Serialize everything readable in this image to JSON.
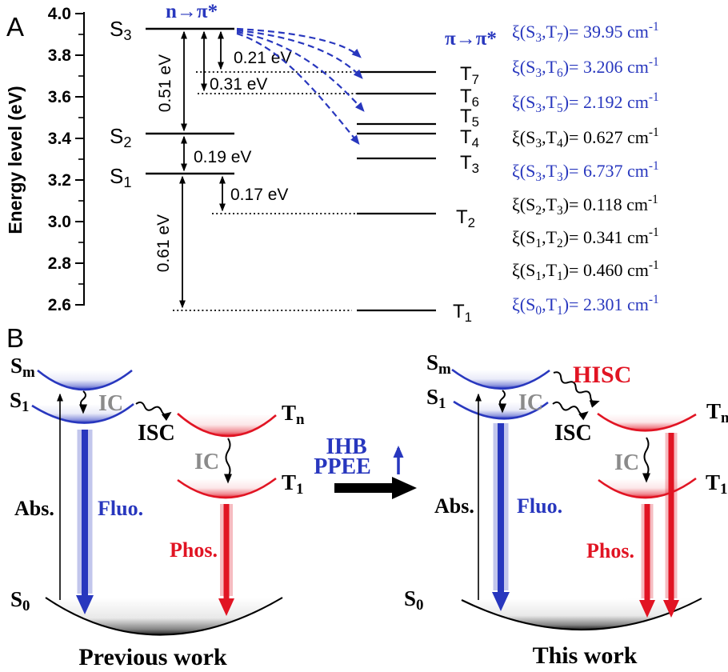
{
  "figure_type": "photophysics energy-level diagram",
  "colors": {
    "blue": "#2837be",
    "red": "#e11423",
    "gray": "#8a8a8a",
    "ink": "#000000"
  },
  "panel_a": {
    "label": "A",
    "axis": {
      "title": "Energy level (eV)",
      "unit": "eV",
      "min": 2.6,
      "max": 4.0,
      "ticks": [
        "4.0",
        "3.8",
        "3.6",
        "3.4",
        "3.2",
        "3.0",
        "2.8",
        "2.6"
      ]
    },
    "annotations": {
      "n_pi": "n→π*",
      "pi_pi": "π→π*"
    },
    "singlets": [
      {
        "name": "S3",
        "segs": [
          {
            "t": "S"
          },
          {
            "t": "3",
            "s": "sub"
          }
        ],
        "energy_eV": 3.93
      },
      {
        "name": "S2",
        "segs": [
          {
            "t": "S"
          },
          {
            "t": "2",
            "s": "sub"
          }
        ],
        "energy_eV": 3.43
      },
      {
        "name": "S1",
        "segs": [
          {
            "t": "S"
          },
          {
            "t": "1",
            "s": "sub"
          }
        ],
        "energy_eV": 3.24
      }
    ],
    "triplets": [
      {
        "name": "T7",
        "segs": [
          {
            "t": "T"
          },
          {
            "t": "7",
            "s": "sub"
          }
        ],
        "energy_eV": 3.72
      },
      {
        "name": "T6",
        "segs": [
          {
            "t": "T"
          },
          {
            "t": "6",
            "s": "sub"
          }
        ],
        "energy_eV": 3.62
      },
      {
        "name": "T5",
        "segs": [
          {
            "t": "T"
          },
          {
            "t": "5",
            "s": "sub"
          }
        ],
        "energy_eV": 3.48
      },
      {
        "name": "T4",
        "segs": [
          {
            "t": "T"
          },
          {
            "t": "4",
            "s": "sub"
          }
        ],
        "energy_eV": 3.44
      },
      {
        "name": "T3",
        "segs": [
          {
            "t": "T"
          },
          {
            "t": "3",
            "s": "sub"
          }
        ],
        "energy_eV": 3.31
      },
      {
        "name": "T2",
        "segs": [
          {
            "t": "T"
          },
          {
            "t": "2",
            "s": "sub"
          }
        ],
        "energy_eV": 3.07
      },
      {
        "name": "T1",
        "segs": [
          {
            "t": "T"
          },
          {
            "t": "1",
            "s": "sub"
          }
        ],
        "energy_eV": 2.62
      }
    ],
    "gaps": [
      {
        "label": "0.51 eV",
        "from": "S3",
        "to": "S2"
      },
      {
        "label": "0.21 eV",
        "from": "S3",
        "to": "T7"
      },
      {
        "label": "0.31 eV",
        "from": "S3",
        "to": "T6"
      },
      {
        "label": "0.19 eV",
        "from": "S2",
        "to": "S1"
      },
      {
        "label": "0.17 eV",
        "from": "S1",
        "to": "T2"
      },
      {
        "label": "0.61 eV",
        "from": "S1",
        "to": "T1"
      }
    ],
    "couplings": [
      {
        "pair": "S3,T7",
        "value_cm1": 39.95,
        "color": "#2837be",
        "segs": [
          {
            "t": "ξ(S"
          },
          {
            "t": "3",
            "s": "sub"
          },
          {
            "t": ",T"
          },
          {
            "t": "7",
            "s": "sub"
          },
          {
            "t": ")= 39.95 cm"
          },
          {
            "t": "-1",
            "s": "sup"
          }
        ]
      },
      {
        "pair": "S3,T6",
        "value_cm1": 3.206,
        "color": "#2837be",
        "segs": [
          {
            "t": "ξ(S"
          },
          {
            "t": "3",
            "s": "sub"
          },
          {
            "t": ",T"
          },
          {
            "t": "6",
            "s": "sub"
          },
          {
            "t": ")= 3.206 cm"
          },
          {
            "t": "-1",
            "s": "sup"
          }
        ]
      },
      {
        "pair": "S3,T5",
        "value_cm1": 2.192,
        "color": "#2837be",
        "segs": [
          {
            "t": "ξ(S"
          },
          {
            "t": "3",
            "s": "sub"
          },
          {
            "t": ",T"
          },
          {
            "t": "5",
            "s": "sub"
          },
          {
            "t": ")= 2.192 cm"
          },
          {
            "t": "-1",
            "s": "sup"
          }
        ]
      },
      {
        "pair": "S3,T4",
        "value_cm1": 0.627,
        "color": "#000000",
        "segs": [
          {
            "t": "ξ(S"
          },
          {
            "t": "3",
            "s": "sub"
          },
          {
            "t": ",T"
          },
          {
            "t": "4",
            "s": "sub"
          },
          {
            "t": ")= 0.627 cm"
          },
          {
            "t": "-1",
            "s": "sup"
          }
        ]
      },
      {
        "pair": "S3,T3",
        "value_cm1": 6.737,
        "color": "#2837be",
        "segs": [
          {
            "t": "ξ(S"
          },
          {
            "t": "3",
            "s": "sub"
          },
          {
            "t": ",T"
          },
          {
            "t": "3",
            "s": "sub"
          },
          {
            "t": ")= 6.737 cm"
          },
          {
            "t": "-1",
            "s": "sup"
          }
        ]
      },
      {
        "pair": "S2,T3",
        "value_cm1": 0.118,
        "color": "#000000",
        "segs": [
          {
            "t": "ξ(S"
          },
          {
            "t": "2",
            "s": "sub"
          },
          {
            "t": ",T"
          },
          {
            "t": "3",
            "s": "sub"
          },
          {
            "t": ")= 0.118 cm"
          },
          {
            "t": "-1",
            "s": "sup"
          }
        ]
      },
      {
        "pair": "S1,T2",
        "value_cm1": 0.341,
        "color": "#000000",
        "segs": [
          {
            "t": "ξ(S"
          },
          {
            "t": "1",
            "s": "sub"
          },
          {
            "t": ",T"
          },
          {
            "t": "2",
            "s": "sub"
          },
          {
            "t": ")= 0.341 cm"
          },
          {
            "t": "-1",
            "s": "sup"
          }
        ]
      },
      {
        "pair": "S1,T1",
        "value_cm1": 0.46,
        "color": "#000000",
        "segs": [
          {
            "t": "ξ(S"
          },
          {
            "t": "1",
            "s": "sub"
          },
          {
            "t": ",T"
          },
          {
            "t": "1",
            "s": "sub"
          },
          {
            "t": ")= 0.460 cm"
          },
          {
            "t": "-1",
            "s": "sup"
          }
        ]
      },
      {
        "pair": "S0,T1",
        "value_cm1": 2.301,
        "color": "#2837be",
        "segs": [
          {
            "t": "ξ(S"
          },
          {
            "t": "0",
            "s": "sub"
          },
          {
            "t": ",T"
          },
          {
            "t": "1",
            "s": "sub"
          },
          {
            "t": ")= 2.301 cm"
          },
          {
            "t": "-1",
            "s": "sup"
          }
        ]
      }
    ]
  },
  "panel_b": {
    "label": "B",
    "middle": {
      "line1": "IHB",
      "line2": "PPEE"
    },
    "left": {
      "title": "Previous work",
      "states": {
        "sm": [
          {
            "t": "S"
          },
          {
            "t": "m",
            "s": "sub"
          }
        ],
        "s1": [
          {
            "t": "S"
          },
          {
            "t": "1",
            "s": "sub"
          }
        ],
        "s0": [
          {
            "t": "S"
          },
          {
            "t": "0",
            "s": "sub"
          }
        ],
        "tn": [
          {
            "t": "T"
          },
          {
            "t": "n",
            "s": "sub"
          }
        ],
        "t1": [
          {
            "t": "T"
          },
          {
            "t": "1",
            "s": "sub"
          }
        ]
      },
      "processes": {
        "ic_top": "IC",
        "isc": "ISC",
        "ic_bottom": "IC",
        "abs": "Abs.",
        "fluo": "Fluo.",
        "phos": "Phos."
      }
    },
    "right": {
      "title": "This work",
      "states": {
        "sm": [
          {
            "t": "S"
          },
          {
            "t": "m",
            "s": "sub"
          }
        ],
        "s1": [
          {
            "t": "S"
          },
          {
            "t": "1",
            "s": "sub"
          }
        ],
        "s0": [
          {
            "t": "S"
          },
          {
            "t": "0",
            "s": "sub"
          }
        ],
        "tn": [
          {
            "t": "T"
          },
          {
            "t": "n",
            "s": "sub"
          }
        ],
        "t1": [
          {
            "t": "T"
          },
          {
            "t": "1",
            "s": "sub"
          }
        ]
      },
      "processes": {
        "ic_top": "IC",
        "hisc": "HISC",
        "isc": "ISC",
        "ic_bottom": "IC",
        "abs": "Abs.",
        "fluo": "Fluo.",
        "phos": "Phos."
      }
    }
  }
}
